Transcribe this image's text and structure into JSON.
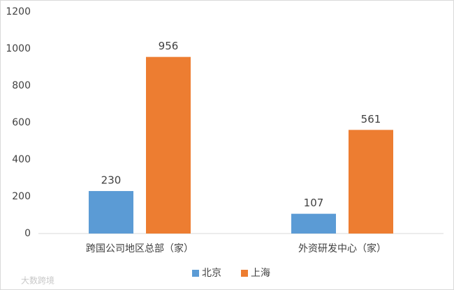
{
  "chart_data": {
    "type": "bar",
    "categories": [
      "跨国公司地区总部（家）",
      "外资研发中心（家）"
    ],
    "series": [
      {
        "name": "北京",
        "color": "#5b9bd5",
        "values": [
          230,
          107
        ]
      },
      {
        "name": "上海",
        "color": "#ed7d31",
        "values": [
          956,
          561
        ]
      }
    ],
    "ylim": [
      0,
      1200
    ],
    "yticks": [
      0,
      200,
      400,
      600,
      800,
      1000,
      1200
    ],
    "grid": false,
    "legend": "bottom",
    "watermark": "大数跨境"
  }
}
